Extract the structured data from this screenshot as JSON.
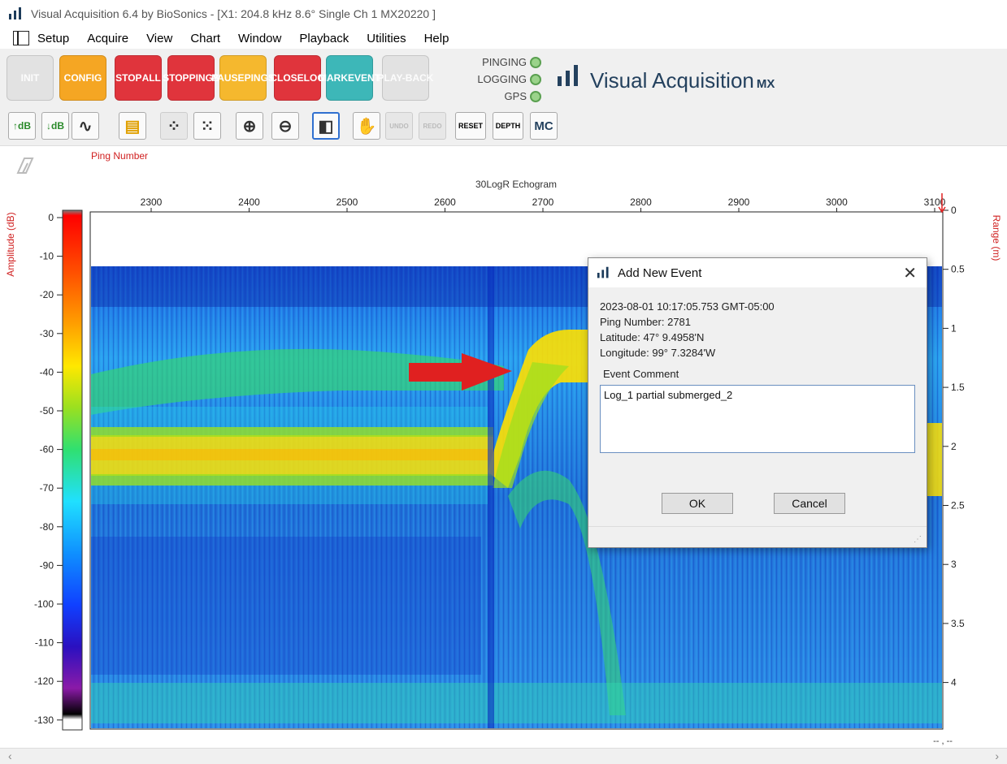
{
  "window": {
    "title": "Visual Acquisition 6.4 by BioSonics - [X1: 204.8 kHz 8.6° Single Ch 1 MX20220 ]"
  },
  "menu": [
    "Setup",
    "Acquire",
    "View",
    "Chart",
    "Window",
    "Playback",
    "Utilities",
    "Help"
  ],
  "ribbon": {
    "buttons": [
      {
        "label": "INIT",
        "color": "#e0e0e0",
        "text_color": "#ffffff",
        "enabled": false
      },
      {
        "label": "CONFIG",
        "color": "#f5a623",
        "text_color": "#ffffff",
        "enabled": true
      },
      {
        "label": "STOP ALL",
        "color": "#e0343c",
        "text_color": "#ffffff",
        "enabled": true
      },
      {
        "label": "STOP PINGS",
        "color": "#e0343c",
        "text_color": "#ffffff",
        "enabled": true
      },
      {
        "label": "PAUSE PINGS",
        "color": "#f5b82e",
        "text_color": "#ffffff",
        "enabled": true
      },
      {
        "label": "CLOSE LOG",
        "color": "#e0343c",
        "text_color": "#ffffff",
        "enabled": true
      },
      {
        "label": "MARK EVENT",
        "color": "#3db7b8",
        "text_color": "#ffffff",
        "enabled": true
      },
      {
        "label": "PLAY-BACK",
        "color": "#e0e0e0",
        "text_color": "#ffffff",
        "enabled": false
      }
    ],
    "status": [
      {
        "label": "PINGING"
      },
      {
        "label": "LOGGING"
      },
      {
        "label": "GPS"
      }
    ],
    "brand_text": "Visual Acquisition",
    "brand_suffix": "MX"
  },
  "toolbar2": {
    "buttons": [
      {
        "name": "gain-up-icon",
        "label": "↑dB",
        "enabled": true
      },
      {
        "name": "gain-down-icon",
        "label": "↓dB",
        "enabled": true
      },
      {
        "name": "curve-icon",
        "label": "",
        "enabled": true
      },
      {
        "name": "color-palette-icon",
        "label": "",
        "enabled": true
      },
      {
        "name": "dots-small-icon",
        "label": "",
        "enabled": false
      },
      {
        "name": "dots-large-icon",
        "label": "",
        "enabled": true
      },
      {
        "name": "zoom-in-icon",
        "label": "",
        "enabled": true
      },
      {
        "name": "zoom-out-icon",
        "label": "",
        "enabled": true
      },
      {
        "name": "select-tool-icon",
        "label": "",
        "enabled": true
      },
      {
        "name": "hand-pan-icon",
        "label": "",
        "enabled": true
      },
      {
        "name": "undo-icon",
        "label": "UNDO",
        "enabled": false
      },
      {
        "name": "redo-icon",
        "label": "REDO",
        "enabled": false
      },
      {
        "name": "reset-icon",
        "label": "RESET",
        "enabled": true
      },
      {
        "name": "depth-icon",
        "label": "DEPTH",
        "enabled": true
      },
      {
        "name": "mc-icon",
        "label": "MC",
        "enabled": true
      }
    ]
  },
  "echogram": {
    "title": "30LogR Echogram",
    "x_label": "Ping Number",
    "y_left_label": "Amplitude (dB)",
    "y_right_label": "Range (m)",
    "ping_ticks": [
      "2300",
      "2400",
      "2500",
      "2600",
      "2700",
      "2800",
      "2900",
      "3000",
      "3100"
    ],
    "amp_ticks": [
      "0",
      "-10",
      "-20",
      "-30",
      "-40",
      "-50",
      "-60",
      "-70",
      "-80",
      "-90",
      "-100",
      "-110",
      "-120",
      "-130"
    ],
    "range_ticks": [
      "0",
      "0.5",
      "1",
      "1.5",
      "2",
      "2.5",
      "3",
      "3.5",
      "4"
    ],
    "coords": "-- , --",
    "palette": [
      "#ffffff",
      "#7a1f7a",
      "#8b1aa8",
      "#2a10c0",
      "#1040ff",
      "#0f90ff",
      "#20e0ff",
      "#30e070",
      "#9ae020",
      "#ffe800",
      "#ffa000",
      "#ff3000",
      "#ff0000",
      "#808080"
    ]
  },
  "dialog": {
    "title": "Add New Event",
    "datetime": "2023-08-01 10:17:05.753 GMT-05:00",
    "ping": "Ping Number: 2781",
    "latitude": "Latitude: 47° 9.4958'N",
    "longitude": "Longitude: 99° 7.3284'W",
    "comment_label": "Event Comment",
    "comment_value": "Log_1 partial submerged_2",
    "ok": "OK",
    "cancel": "Cancel"
  }
}
